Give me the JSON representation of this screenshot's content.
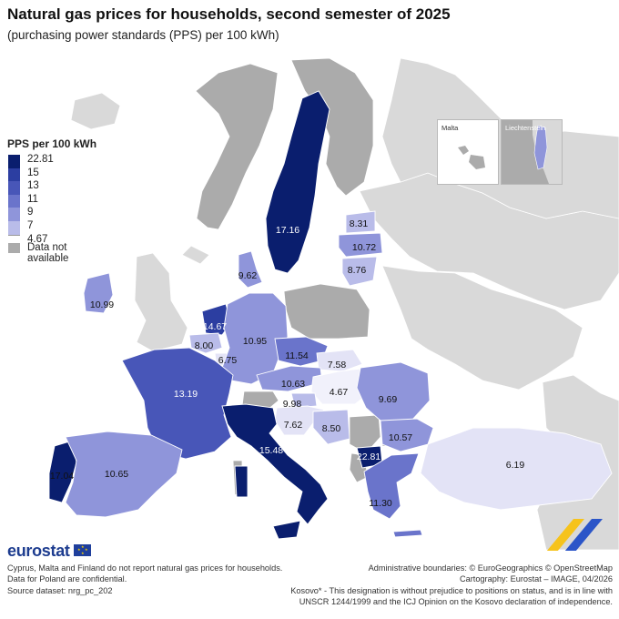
{
  "title": "Natural gas prices for households, second semester of 2025",
  "subtitle": "(purchasing power standards (PPS) per 100 kWh)",
  "legend": {
    "heading": "PPS per 100 kWh",
    "breaks": [
      "22.81",
      "15",
      "13",
      "11",
      "9",
      "7",
      "4.67"
    ],
    "colors": [
      "#0a1e6e",
      "#2c3ea1",
      "#4856b8",
      "#6a74cb",
      "#8f95da",
      "#b9bce9",
      "#e3e3f6"
    ],
    "na_label": "Data not available",
    "na_color": "#ababab"
  },
  "insets": {
    "malta": "Malta",
    "liechtenstein": "Liechtenstein"
  },
  "map_values": {
    "sweden": "17.16",
    "estonia": "8.31",
    "latvia": "10.72",
    "lithuania": "8.76",
    "denmark": "9.62",
    "ireland": "10.99",
    "netherlands": "14.67",
    "belgium": "8.00",
    "luxembourg": "6.75",
    "germany": "10.95",
    "czechia": "11.54",
    "slovakia": "7.58",
    "austria": "10.63",
    "hungary": "4.67",
    "slovenia": "9.98",
    "croatia": "7.62",
    "bosnia": "8.50",
    "romania": "9.69",
    "bulgaria": "10.57",
    "north_macedonia": "22.81",
    "greece": "11.30",
    "turkey": "6.19",
    "france": "13.19",
    "italy": "15.48",
    "portugal": "17.04",
    "spain": "10.65"
  },
  "branding": {
    "logo": "eurostat"
  },
  "footnotes": [
    "Cyprus, Malta and Finland do not report natural gas prices for households.",
    "Data for Poland are confidential.",
    "Source dataset: nrg_pc_202"
  ],
  "credits": [
    "Administrative boundaries: © EuroGeographics © OpenStreetMap",
    "Cartography: Eurostat – IMAGE, 04/2026",
    "Kosovo* - This designation is without prejudice to positions on status, and is in line with",
    "UNSCR 1244/1999 and the ICJ Opinion on the Kosovo declaration of independence."
  ]
}
